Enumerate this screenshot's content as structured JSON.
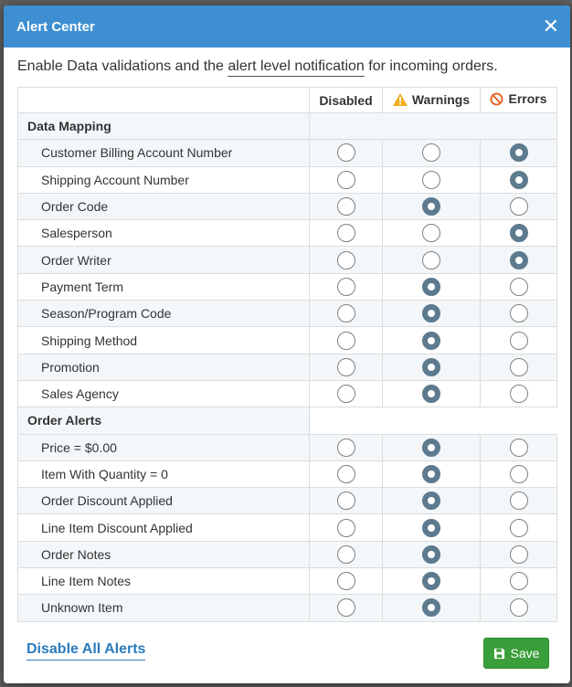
{
  "modal": {
    "title": "Alert Center",
    "close_glyph": "✕",
    "intro_before": "Enable Data validations and the ",
    "intro_link": "alert level notification",
    "intro_after": " for incoming orders."
  },
  "columns": {
    "disabled": "Disabled",
    "warnings": "Warnings",
    "errors": "Errors",
    "warning_icon": "warning-triangle-icon",
    "error_icon": "ban-icon",
    "warning_color": "#f0ad1e",
    "error_color": "#e8601c"
  },
  "sections": [
    {
      "title": "Data Mapping",
      "rows": [
        {
          "label": "Customer Billing Account Number",
          "selected": "errors"
        },
        {
          "label": "Shipping Account Number",
          "selected": "errors"
        },
        {
          "label": "Order Code",
          "selected": "warnings"
        },
        {
          "label": "Salesperson",
          "selected": "errors"
        },
        {
          "label": "Order Writer",
          "selected": "errors"
        },
        {
          "label": "Payment Term",
          "selected": "warnings"
        },
        {
          "label": "Season/Program Code",
          "selected": "warnings"
        },
        {
          "label": "Shipping Method",
          "selected": "warnings"
        },
        {
          "label": "Promotion",
          "selected": "warnings"
        },
        {
          "label": "Sales Agency",
          "selected": "warnings"
        }
      ]
    },
    {
      "title": "Order Alerts",
      "rows": [
        {
          "label": "Price = $0.00",
          "selected": "warnings"
        },
        {
          "label": "Item With Quantity = 0",
          "selected": "warnings"
        },
        {
          "label": "Order Discount Applied",
          "selected": "warnings"
        },
        {
          "label": "Line Item Discount Applied",
          "selected": "warnings"
        },
        {
          "label": "Order Notes",
          "selected": "warnings"
        },
        {
          "label": "Line Item Notes",
          "selected": "warnings"
        },
        {
          "label": "Unknown Item",
          "selected": "warnings"
        }
      ]
    }
  ],
  "footer": {
    "disable_all_label": "Disable All Alerts",
    "save_label": "Save",
    "save_icon": "floppy-disk-icon",
    "save_color": "#3a9e3a"
  }
}
